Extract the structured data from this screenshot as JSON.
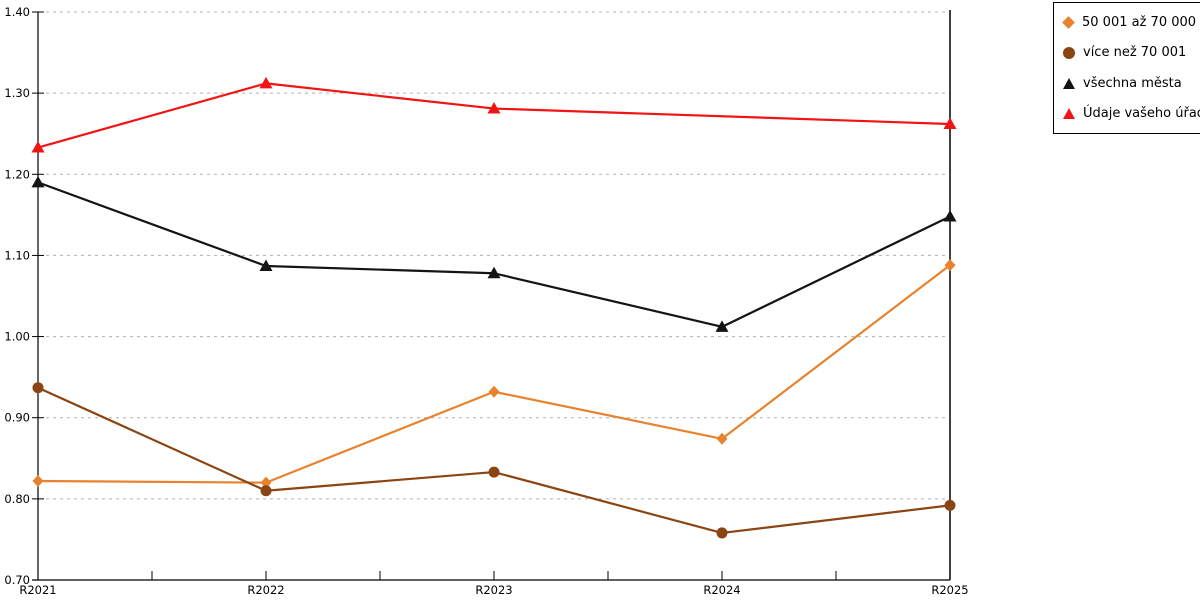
{
  "chart_data": {
    "type": "line",
    "title": "",
    "xlabel": "",
    "ylabel": "",
    "categories": [
      "R2021",
      "R2022",
      "R2023",
      "R2024",
      "R2025"
    ],
    "series": [
      {
        "name": "50 001 až 70 000",
        "color": "#E8822E",
        "marker": "diamond",
        "values": [
          0.822,
          0.82,
          0.932,
          0.874,
          1.088
        ]
      },
      {
        "name": "více než 70 001",
        "color": "#8B4513",
        "marker": "circle",
        "values": [
          0.937,
          0.81,
          0.833,
          0.758,
          0.792
        ]
      },
      {
        "name": "všechna města",
        "color": "#141414",
        "marker": "triangle",
        "values": [
          1.19,
          1.087,
          1.078,
          1.012,
          1.148
        ]
      },
      {
        "name": "Údaje vašeho úřadu",
        "color": "#F01414",
        "marker": "triangle",
        "values": [
          1.233,
          1.312,
          1.281,
          null,
          1.262
        ]
      }
    ],
    "ylim": [
      0.7,
      1.4
    ],
    "ytick_step": 0.1,
    "ytick_labels": [
      "0.70",
      "0.80",
      "0.90",
      "1.00",
      "1.10",
      "1.20",
      "1.30",
      "1.40"
    ],
    "grid": "horizontal-dashed",
    "grid_color": "#b0b0b0",
    "axis_color": "#000000",
    "legend_position": "top-right"
  }
}
